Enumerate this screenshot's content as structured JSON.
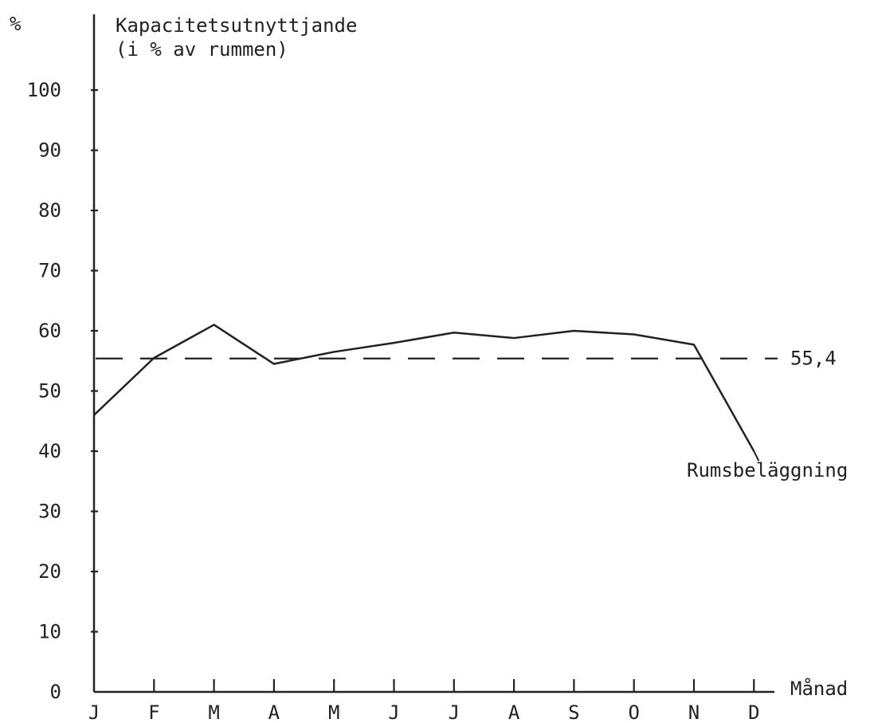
{
  "chart_data": {
    "type": "line",
    "title": "",
    "y_unit": "%",
    "ylabel_line1": "Kapacitetsutnyttjande",
    "ylabel_line2": "(i % av rummen)",
    "xlabel": "Månad",
    "categories": [
      "J",
      "F",
      "M",
      "A",
      "M",
      "J",
      "J",
      "A",
      "S",
      "O",
      "N",
      "D"
    ],
    "ylim": [
      0,
      100
    ],
    "yticks": [
      0,
      10,
      20,
      30,
      40,
      50,
      60,
      70,
      80,
      90,
      100
    ],
    "series": [
      {
        "name": "Rumsbeläggning",
        "values": [
          46.0,
          55.5,
          61.0,
          54.5,
          56.5,
          58.0,
          59.7,
          58.8,
          60.0,
          59.4,
          57.7,
          40.0
        ]
      }
    ],
    "reference_line": {
      "value": 55.4,
      "label": "55,4",
      "style": "dashed"
    },
    "grid": false,
    "legend": "none"
  }
}
